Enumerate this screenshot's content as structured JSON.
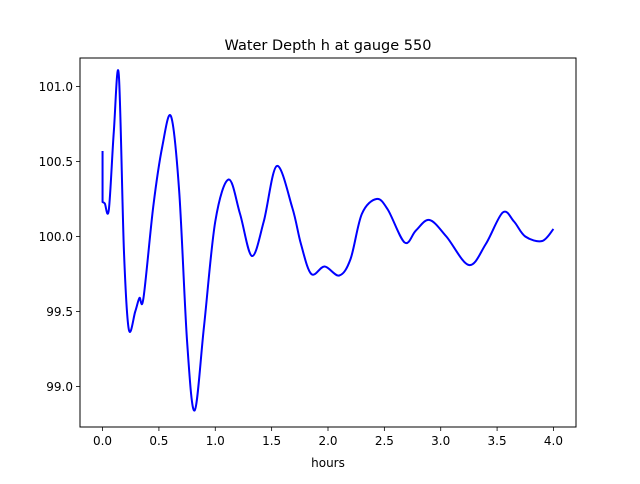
{
  "chart_data": {
    "type": "line",
    "title": "Water Depth h at gauge 550",
    "xlabel": "hours",
    "ylabel": "",
    "xlim": [
      -0.2,
      4.2
    ],
    "ylim": [
      98.73,
      101.19
    ],
    "grid": false,
    "xticks": [
      0.0,
      0.5,
      1.0,
      1.5,
      2.0,
      2.5,
      3.0,
      3.5,
      4.0
    ],
    "xtick_labels": [
      "0.0",
      "0.5",
      "1.0",
      "1.5",
      "2.0",
      "2.5",
      "3.0",
      "3.5",
      "4.0"
    ],
    "yticks": [
      99.0,
      99.5,
      100.0,
      100.5,
      101.0
    ],
    "ytick_labels": [
      "99.0",
      "99.5",
      "100.0",
      "100.5",
      "101.0"
    ],
    "series": [
      {
        "name": "h",
        "color": "#0000ff",
        "x": [
          0.0,
          0.0,
          0.02,
          0.056,
          0.1,
          0.144,
          0.19,
          0.233,
          0.29,
          0.327,
          0.363,
          0.45,
          0.53,
          0.608,
          0.68,
          0.75,
          0.817,
          0.9,
          1.0,
          1.118,
          1.22,
          1.325,
          1.43,
          1.546,
          1.684,
          1.76,
          1.852,
          1.97,
          2.1,
          2.2,
          2.3,
          2.43,
          2.53,
          2.68,
          2.78,
          2.9,
          3.05,
          3.25,
          3.4,
          3.55,
          3.65,
          3.75,
          3.9,
          4.0
        ],
        "y": [
          100.57,
          100.23,
          100.22,
          100.18,
          100.7,
          101.08,
          99.9,
          99.38,
          99.5,
          99.59,
          99.59,
          100.2,
          100.6,
          100.8,
          100.3,
          99.3,
          98.84,
          99.4,
          100.1,
          100.38,
          100.15,
          99.87,
          100.1,
          100.47,
          100.19,
          99.95,
          99.75,
          99.8,
          99.74,
          99.85,
          100.15,
          100.25,
          100.18,
          99.96,
          100.04,
          100.11,
          100.0,
          99.81,
          99.95,
          100.16,
          100.1,
          100.0,
          99.97,
          100.05
        ]
      }
    ]
  }
}
